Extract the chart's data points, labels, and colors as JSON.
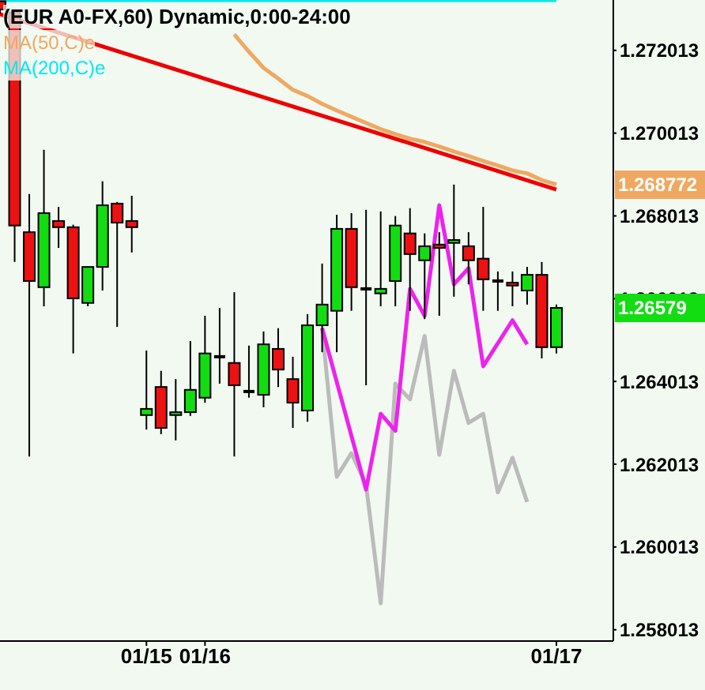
{
  "chart_data": {
    "type": "candlestick",
    "title": "(EUR A0-FX,60) Dynamic,0:00-24:00",
    "legend": "top left",
    "categories": [
      null,
      null,
      null,
      null,
      null,
      null,
      null,
      null,
      null,
      null,
      "01/15",
      null,
      null,
      null,
      "01/16",
      null,
      null,
      null,
      null,
      null,
      null,
      null,
      null,
      null,
      null,
      null,
      null,
      null,
      null,
      null,
      null,
      null,
      null,
      null,
      null,
      null,
      null,
      null,
      "01/17"
    ],
    "ylim": [
      1.25774,
      1.27323
    ],
    "yticks": [
      1.258013,
      1.260013,
      1.262013,
      1.264013,
      1.266013,
      1.268013,
      1.270013,
      1.272013
    ],
    "ohlc": [
      [
        1.2732,
        1.2732,
        1.2729,
        1.273
      ],
      [
        1.27293,
        1.27293,
        1.2669,
        1.26778
      ],
      [
        1.26762,
        1.26854,
        1.2622,
        1.26644
      ],
      [
        1.26629,
        1.26961,
        1.26583,
        1.26808
      ],
      [
        1.26789,
        1.26823,
        1.26724,
        1.26774
      ],
      [
        1.26774,
        1.2678,
        1.26469,
        1.26602
      ],
      [
        1.26591,
        1.2668,
        1.26583,
        1.26678
      ],
      [
        1.26678,
        1.26885,
        1.26621,
        1.26827
      ],
      [
        1.26831,
        1.26835,
        1.26533,
        1.26785
      ],
      [
        1.26789,
        1.2685,
        1.26713,
        1.26774
      ],
      [
        1.2632,
        1.26476,
        1.26285,
        1.26335
      ],
      [
        1.26388,
        1.26427,
        1.26274,
        1.26289
      ],
      [
        1.2632,
        1.26407,
        1.26259,
        1.26327
      ],
      [
        1.26327,
        1.26499,
        1.26318,
        1.26381
      ],
      [
        1.26362,
        1.2656,
        1.2635,
        1.26469
      ],
      [
        1.26461,
        1.26579,
        1.26396,
        1.26461
      ],
      [
        1.26446,
        1.26617,
        1.2622,
        1.26392
      ],
      [
        1.26377,
        1.26488,
        1.26362,
        1.26377
      ],
      [
        1.26369,
        1.26522,
        1.26339,
        1.26491
      ],
      [
        1.2648,
        1.2653,
        1.26388,
        1.2643
      ],
      [
        1.26407,
        1.26461,
        1.26289,
        1.2635
      ],
      [
        1.26331,
        1.26564,
        1.26304,
        1.26537
      ],
      [
        1.26537,
        1.26686,
        1.26472,
        1.26587
      ],
      [
        1.26572,
        1.26804,
        1.26472,
        1.2677
      ],
      [
        1.2677,
        1.26808,
        1.26572,
        1.26629
      ],
      [
        1.26625,
        1.26816,
        1.26392,
        1.26625
      ],
      [
        1.26614,
        1.26812,
        1.26583,
        1.26625
      ],
      [
        1.26644,
        1.26801,
        1.26583,
        1.26778
      ],
      [
        1.26759,
        1.2682,
        1.26572,
        1.26709
      ],
      [
        1.26694,
        1.26759,
        1.26552,
        1.26728
      ],
      [
        1.26732,
        1.26762,
        1.2656,
        1.26724
      ],
      [
        1.26736,
        1.26877,
        1.26606,
        1.26743
      ],
      [
        1.26728,
        1.26762,
        1.26636,
        1.26694
      ],
      [
        1.26698,
        1.26823,
        1.26572,
        1.26648
      ],
      [
        1.26644,
        1.26667,
        1.26572,
        1.26644
      ],
      [
        1.2664,
        1.26667,
        1.26583,
        1.26633
      ],
      [
        1.26621,
        1.26678,
        1.26587,
        1.26659
      ],
      [
        1.26659,
        1.2669,
        1.26457,
        1.26484
      ],
      [
        1.26484,
        1.26587,
        1.26469,
        1.26579
      ]
    ],
    "colors": [
      "#ee1111",
      "#ee1111",
      "#ee1111",
      "#11dd11",
      "#ee1111",
      "#ee1111",
      "#11dd11",
      "#11dd11",
      "#ee1111",
      "#ee1111",
      "#11dd11",
      "#ee1111",
      "#11dd11",
      "#11dd11",
      "#11dd11",
      "#000000",
      "#ee1111",
      "#000000",
      "#11dd11",
      "#ee1111",
      "#ee1111",
      "#11dd11",
      "#11dd11",
      "#11dd11",
      "#ee1111",
      "#000000",
      "#11dd11",
      "#11dd11",
      "#ee1111",
      "#11dd11",
      "#ee1111",
      "#11dd11",
      "#ee1111",
      "#ee1111",
      "#000000",
      "#ee1111",
      "#11dd11",
      "#ee1111",
      "#11dd11"
    ],
    "value_labels": [
      null,
      null,
      null,
      null,
      null,
      null,
      null,
      null,
      null,
      null,
      null,
      null,
      null,
      null,
      null,
      null,
      null,
      null,
      null,
      null,
      null,
      null,
      null,
      null,
      null,
      null,
      null,
      null,
      null,
      null,
      null,
      null,
      null,
      null,
      null,
      null,
      null,
      null,
      "1.26579"
    ],
    "series": [
      {
        "type": "line",
        "name": "MA(50,C)e",
        "color": "#f0a860",
        "values": [
          null,
          null,
          null,
          null,
          null,
          null,
          null,
          null,
          null,
          null,
          null,
          null,
          null,
          null,
          null,
          null,
          1.2724,
          1.27198,
          1.27159,
          1.27133,
          1.27106,
          1.27091,
          1.27072,
          1.27056,
          1.27041,
          1.27026,
          1.27011,
          1.26999,
          1.26988,
          1.2698,
          1.26969,
          1.26957,
          1.26946,
          1.26934,
          1.26923,
          1.26911,
          1.26904,
          1.26888,
          1.268772
        ]
      },
      {
        "type": "line",
        "name": "MA(200,C)e",
        "color": "#00e8f0",
        "values": [
          1.27323,
          1.27323,
          1.27323,
          1.27323,
          1.27323,
          1.27323,
          1.27323,
          1.27323,
          1.27323,
          1.27323,
          1.27323,
          1.27323,
          1.27323,
          1.27323,
          1.27323,
          1.27323,
          1.27323,
          1.27323,
          1.27323,
          1.27323,
          1.27323,
          1.27323,
          1.27323,
          1.27323,
          1.27323,
          1.27323,
          1.27323,
          1.27323,
          1.27323,
          1.27323,
          1.27323,
          1.27323,
          1.27323,
          1.27323,
          1.27323,
          1.27323,
          1.27323,
          1.27323,
          1.27323
        ]
      },
      {
        "type": "line",
        "color": "#ee0000",
        "values": [
          1.27289,
          null,
          null,
          null,
          null,
          null,
          null,
          null,
          null,
          null,
          null,
          null,
          null,
          null,
          null,
          null,
          null,
          null,
          null,
          null,
          null,
          null,
          null,
          null,
          null,
          null,
          null,
          null,
          null,
          null,
          null,
          null,
          null,
          null,
          null,
          null,
          null,
          null,
          1.26865
        ]
      },
      {
        "type": "line",
        "color": "#bbbbbb",
        "values": [
          null,
          null,
          null,
          null,
          null,
          null,
          null,
          null,
          null,
          null,
          null,
          null,
          null,
          null,
          null,
          null,
          null,
          null,
          null,
          null,
          null,
          null,
          1.2653,
          1.26171,
          1.26228,
          1.26152,
          1.25865,
          1.26396,
          1.26358,
          1.26511,
          1.26224,
          1.26427,
          1.26301,
          1.26323,
          1.26133,
          1.26217,
          1.2611,
          null,
          null
        ]
      },
      {
        "type": "line",
        "color": "#ee22ee",
        "values": [
          null,
          null,
          null,
          null,
          null,
          null,
          null,
          null,
          null,
          null,
          null,
          null,
          null,
          null,
          null,
          null,
          null,
          null,
          null,
          null,
          null,
          null,
          1.2653,
          null,
          null,
          1.2614,
          1.26323,
          1.26282,
          1.26625,
          1.2656,
          1.26827,
          1.26636,
          1.26675,
          1.26438,
          null,
          1.26549,
          1.26491,
          null,
          null
        ]
      }
    ],
    "annotations": [
      "1.268772"
    ]
  }
}
